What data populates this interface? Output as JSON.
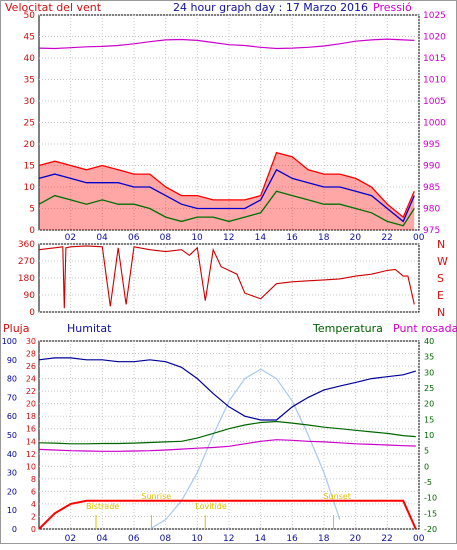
{
  "chart_data": [
    {
      "type": "line",
      "title": "24 hour graph day : 17 Marzo 2016",
      "left_axis_label": "Velocitat del vent",
      "right_axis_label": "Pressió",
      "x_ticks": [
        "02",
        "04",
        "06",
        "08",
        "10",
        "12",
        "14",
        "16",
        "18",
        "20",
        "22",
        "00"
      ],
      "left_ticks": [
        "0",
        "5",
        "10",
        "15",
        "20",
        "25",
        "30",
        "35",
        "40",
        "45",
        "50"
      ],
      "right_ticks": [
        "975",
        "980",
        "985",
        "990",
        "995",
        "1000",
        "1005",
        "1010",
        "1015",
        "1020",
        "1025"
      ],
      "ylim_left": [
        0,
        50
      ],
      "ylim_right": [
        975,
        1025
      ],
      "colors": {
        "wind_gust": "#ff0000",
        "wind_avg": "#0000cc",
        "wind_min": "#007000",
        "pressure": "#cc00cc"
      },
      "x_hours": [
        0,
        1,
        2,
        3,
        4,
        5,
        6,
        7,
        8,
        9,
        10,
        11,
        12,
        13,
        14,
        15,
        16,
        17,
        18,
        19,
        20,
        21,
        22,
        23,
        23.7
      ],
      "series": [
        {
          "values": [
            15,
            16,
            15,
            14,
            15,
            14,
            13,
            13,
            10,
            8,
            8,
            7,
            7,
            7,
            8,
            18,
            17,
            14,
            13,
            13,
            12,
            10,
            6,
            3,
            9
          ]
        },
        {
          "values": [
            12,
            13,
            12,
            11,
            11,
            11,
            10,
            10,
            8,
            6,
            5,
            5,
            5,
            5,
            7,
            14,
            12,
            11,
            10,
            10,
            9,
            8,
            5,
            2,
            8
          ]
        },
        {
          "values": [
            6,
            8,
            7,
            6,
            7,
            6,
            6,
            5,
            3,
            2,
            3,
            3,
            2,
            3,
            4,
            9,
            8,
            7,
            6,
            6,
            5,
            4,
            2,
            1,
            5
          ]
        },
        {
          "values": [
            1017.3,
            1017.2,
            1017.4,
            1017.6,
            1017.7,
            1017.9,
            1018.3,
            1018.8,
            1019.2,
            1019.3,
            1019.1,
            1018.6,
            1018.1,
            1017.9,
            1017.5,
            1017.2,
            1017.3,
            1017.5,
            1017.8,
            1018.3,
            1018.9,
            1019.2,
            1019.4,
            1019.2,
            1019.1
          ]
        }
      ]
    },
    {
      "type": "line",
      "right_labels": [
        "N",
        "W",
        "S",
        "E",
        "N"
      ],
      "left_ticks": [
        "360",
        "270",
        "180",
        "90",
        "0"
      ],
      "ylim": [
        0,
        360
      ],
      "color": "#cc0000",
      "x_hours": [
        0,
        1,
        1.5,
        1.6,
        1.7,
        2,
        3,
        4,
        4.5,
        5,
        5.5,
        6,
        7,
        8,
        9,
        9.5,
        10,
        10.5,
        11,
        11.5,
        12,
        12.5,
        13,
        14,
        15,
        16,
        17,
        18,
        19,
        20,
        21,
        22,
        22.5,
        23,
        23.3,
        23.7
      ],
      "series": [
        {
          "values": [
            330,
            340,
            345,
            20,
            340,
            345,
            350,
            345,
            30,
            340,
            40,
            345,
            330,
            320,
            330,
            300,
            340,
            60,
            330,
            240,
            220,
            200,
            100,
            70,
            150,
            160,
            165,
            170,
            175,
            190,
            200,
            220,
            225,
            190,
            190,
            40
          ]
        }
      ]
    },
    {
      "type": "line",
      "header_left": "Pluja",
      "header_humidity": "Humitat",
      "header_temperature": "Temperatura",
      "header_dewpoint": "Punt rosada",
      "humidity_ticks": [
        "0",
        "10",
        "20",
        "30",
        "40",
        "50",
        "60",
        "70",
        "80",
        "90",
        "100"
      ],
      "rain_ticks": [
        "0",
        "2",
        "4",
        "6",
        "8",
        "10",
        "12",
        "14",
        "16",
        "18",
        "20",
        "22",
        "24",
        "26",
        "28",
        "30"
      ],
      "temp_ticks": [
        "-20",
        "-15",
        "-10",
        "-5",
        "0",
        "5",
        "10",
        "15",
        "20",
        "25",
        "30",
        "35",
        "40"
      ],
      "ylim_humidity": [
        0,
        100
      ],
      "ylim_rain": [
        0,
        30
      ],
      "ylim_temp": [
        -20,
        40
      ],
      "colors": {
        "humidity": "#000099",
        "temperature": "#006600",
        "dewpoint": "#cc00cc",
        "rain": "#ff0000",
        "solar": "#aac8ee",
        "events": "#e0c000"
      },
      "x_hours": [
        0,
        1,
        2,
        3,
        4,
        5,
        6,
        7,
        8,
        9,
        10,
        11,
        12,
        13,
        14,
        15,
        16,
        17,
        18,
        19,
        20,
        21,
        22,
        23,
        23.8
      ],
      "series": [
        {
          "values": [
            90,
            91,
            91,
            90,
            90,
            89,
            89,
            90,
            89,
            86,
            80,
            72,
            65,
            60,
            58,
            58,
            65,
            70,
            74,
            76,
            78,
            80,
            81,
            82,
            84
          ]
        },
        {
          "values": [
            7.5,
            7.4,
            7.2,
            7.2,
            7.3,
            7.3,
            7.4,
            7.6,
            7.8,
            8,
            9,
            10.5,
            12,
            13.2,
            14,
            14.3,
            13.8,
            13.2,
            12.5,
            12,
            11.5,
            11,
            10.5,
            9.8,
            9.5
          ]
        },
        {
          "values": [
            5.4,
            5.2,
            5,
            4.9,
            4.8,
            4.8,
            4.9,
            5,
            5.2,
            5.5,
            5.8,
            6,
            6.4,
            7.2,
            8,
            8.5,
            8.3,
            8,
            7.8,
            7.5,
            7.2,
            7,
            6.8,
            6.6,
            6.5
          ]
        },
        {
          "values": [
            0,
            2.5,
            4,
            4.5,
            4.5,
            4.5,
            4.5,
            4.5,
            4.5,
            4.5,
            4.5,
            4.5,
            4.5,
            4.5,
            4.5,
            4.5,
            4.5,
            4.5,
            4.5,
            4.5,
            4.5,
            4.5,
            4.5,
            4.5,
            0
          ]
        }
      ],
      "events": [
        {
          "label": "Bistrade",
          "hour": 3.6
        },
        {
          "label": "Sunrise",
          "hour": 7.1
        },
        {
          "label": "Lovitide",
          "hour": 10.5
        },
        {
          "label": "Sunset",
          "hour": 18.6
        }
      ],
      "solar_curve_hours": [
        7,
        8,
        9,
        10,
        11,
        12,
        13,
        14,
        15,
        16,
        17,
        18,
        19
      ],
      "solar_curve_values": [
        0,
        5,
        15,
        30,
        50,
        68,
        80,
        85,
        80,
        68,
        50,
        30,
        5
      ]
    }
  ]
}
